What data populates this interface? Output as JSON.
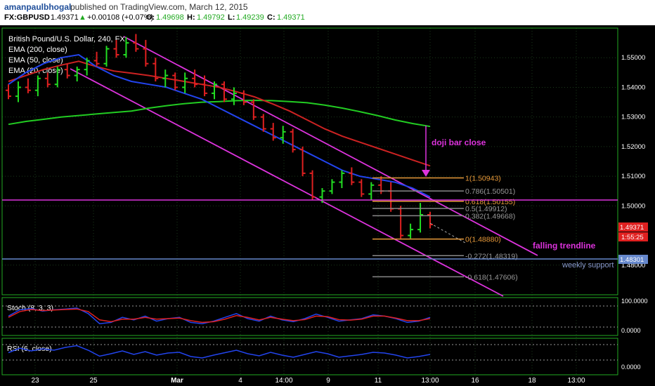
{
  "header": {
    "author": "amanpaulbhogal",
    "published": "published on TradingView.com, March 12, 2015",
    "symbol": "FX:GBPUSD",
    "last": "1.49371",
    "change": "+0.00108 (+0.07%)",
    "open_label": "O:",
    "open": "1.49698",
    "high_label": "H:",
    "high": "1.49792",
    "low_label": "L:",
    "low": "1.49239",
    "close_label": "C:",
    "close": "1.49371"
  },
  "legend": {
    "title": "British Pound/U.S. Dollar, 240, FX",
    "ema200": "EMA (200, close)",
    "ema50": "EMA (50, close)",
    "ema20": "EMA (20, close)"
  },
  "annotations": {
    "doji": "doji bar close",
    "trendline": "falling trendline",
    "support": "weekly support"
  },
  "colors": {
    "up": "#22dd22",
    "down": "#e02020",
    "ema200": "#22cc22",
    "ema50": "#cc2222",
    "ema20": "#2244ee",
    "channel": "#dd33dd",
    "fib": "#e89a3a",
    "support": "#6688cc"
  },
  "price_axis": {
    "ticks": [
      "1.55000",
      "1.54000",
      "1.53000",
      "1.52000",
      "1.51000",
      "1.50000",
      "1.48000"
    ],
    "last_price": "1.49371",
    "countdown": "1:55:25",
    "support_price": "1.48301"
  },
  "time_axis": {
    "ticks": [
      "23",
      "25",
      "Mar",
      "4",
      "14:00",
      "9",
      "11",
      "13:00",
      "16",
      "18",
      "13:00"
    ]
  },
  "fib_levels": [
    {
      "label": "1(1.50943)",
      "value": 1.50943
    },
    {
      "label": "0.786(1.50501)",
      "value": 1.50501
    },
    {
      "label": "0.618(1.50155)",
      "value": 1.50155
    },
    {
      "label": "0.5(1.49912)",
      "value": 1.49912
    },
    {
      "label": "0.382(1.49668)",
      "value": 1.49668
    },
    {
      "label": "0(1.48880)",
      "value": 1.4888
    },
    {
      "label": "-0.272(1.48319)",
      "value": 1.48319
    },
    {
      "label": "-0.618(1.47606)",
      "value": 1.47606
    }
  ],
  "stoch": {
    "title": "Stoch (8, 3, 3)",
    "ticks": [
      "100.0000",
      "0.0000"
    ]
  },
  "rsi": {
    "title": "RSI (6, close)",
    "ticks": [
      "0.0000"
    ]
  },
  "chart_data": {
    "type": "candlestick",
    "symbol": "GBPUSD",
    "interval": "240",
    "ylim": [
      1.47,
      1.56
    ],
    "series": [
      {
        "name": "EMA (200, close)",
        "values": [
          1.5275,
          1.5285,
          1.5292,
          1.53,
          1.5305,
          1.531,
          1.5315,
          1.532,
          1.533,
          1.5338,
          1.5345,
          1.535,
          1.5352,
          1.5355,
          1.5356,
          1.5355,
          1.5352,
          1.5348,
          1.534,
          1.533,
          1.5318,
          1.5305,
          1.529,
          1.5278,
          1.5268
        ]
      },
      {
        "name": "EMA (50, close)",
        "values": [
          1.542,
          1.544,
          1.546,
          1.5475,
          1.5488,
          1.547,
          1.5455,
          1.5448,
          1.544,
          1.543,
          1.542,
          1.541,
          1.54,
          1.5385,
          1.5368,
          1.5345,
          1.532,
          1.529,
          1.526,
          1.5235,
          1.5215,
          1.5195,
          1.5175,
          1.5155,
          1.5135
        ]
      },
      {
        "name": "EMA (20, close)",
        "values": [
          1.541,
          1.545,
          1.548,
          1.55,
          1.551,
          1.547,
          1.544,
          1.542,
          1.541,
          1.54,
          1.538,
          1.536,
          1.533,
          1.53,
          1.527,
          1.524,
          1.521,
          1.518,
          1.515,
          1.512,
          1.51,
          1.509,
          1.508,
          1.506,
          1.503
        ]
      }
    ],
    "candles": [
      [
        1.539,
        1.541,
        1.536,
        1.537
      ],
      [
        1.537,
        1.542,
        1.535,
        1.54
      ],
      [
        1.54,
        1.543,
        1.538,
        1.539
      ],
      [
        1.539,
        1.544,
        1.537,
        1.543
      ],
      [
        1.543,
        1.545,
        1.54,
        1.541
      ],
      [
        1.541,
        1.547,
        1.54,
        1.546
      ],
      [
        1.546,
        1.548,
        1.543,
        1.544
      ],
      [
        1.544,
        1.547,
        1.542,
        1.546
      ],
      [
        1.546,
        1.55,
        1.544,
        1.549
      ],
      [
        1.549,
        1.552,
        1.547,
        1.548
      ],
      [
        1.548,
        1.554,
        1.547,
        1.553
      ],
      [
        1.553,
        1.556,
        1.55,
        1.551
      ],
      [
        1.551,
        1.557,
        1.55,
        1.555
      ],
      [
        1.555,
        1.558,
        1.552,
        1.553
      ],
      [
        1.553,
        1.556,
        1.547,
        1.548
      ],
      [
        1.548,
        1.55,
        1.542,
        1.543
      ],
      [
        1.543,
        1.546,
        1.54,
        1.544
      ],
      [
        1.544,
        1.545,
        1.539,
        1.54
      ],
      [
        1.54,
        1.545,
        1.538,
        1.543
      ],
      [
        1.543,
        1.546,
        1.54,
        1.541
      ],
      [
        1.541,
        1.544,
        1.537,
        1.538
      ],
      [
        1.538,
        1.542,
        1.536,
        1.541
      ],
      [
        1.541,
        1.542,
        1.535,
        1.536
      ],
      [
        1.536,
        1.54,
        1.534,
        1.538
      ],
      [
        1.538,
        1.539,
        1.534,
        1.535
      ],
      [
        1.535,
        1.536,
        1.529,
        1.53
      ],
      [
        1.53,
        1.531,
        1.525,
        1.526
      ],
      [
        1.526,
        1.528,
        1.522,
        1.523
      ],
      [
        1.523,
        1.527,
        1.521,
        1.525
      ],
      [
        1.525,
        1.526,
        1.518,
        1.519
      ],
      [
        1.519,
        1.52,
        1.51,
        1.511
      ],
      [
        1.511,
        1.512,
        1.502,
        1.503
      ],
      [
        1.503,
        1.506,
        1.501,
        1.505
      ],
      [
        1.505,
        1.509,
        1.504,
        1.508
      ],
      [
        1.508,
        1.512,
        1.506,
        1.511
      ],
      [
        1.511,
        1.513,
        1.507,
        1.508
      ],
      [
        1.508,
        1.509,
        1.503,
        1.504
      ],
      [
        1.504,
        1.508,
        1.502,
        1.507
      ],
      [
        1.507,
        1.51,
        1.504,
        1.505
      ],
      [
        1.505,
        1.508,
        1.498,
        1.499
      ],
      [
        1.499,
        1.5,
        1.489,
        1.49
      ],
      [
        1.49,
        1.494,
        1.489,
        1.492
      ],
      [
        1.492,
        1.501,
        1.491,
        1.497
      ],
      [
        1.497,
        1.498,
        1.4924,
        1.4937
      ]
    ]
  }
}
